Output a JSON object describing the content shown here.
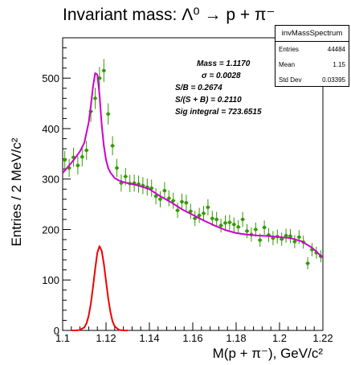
{
  "title": "Invariant mass: Λ⁰ → p + π⁻",
  "stats_box": {
    "name": "invMassSpectrum",
    "rows": [
      {
        "label": "Entries",
        "value": "44484"
      },
      {
        "label": "Mean",
        "value": "1.15"
      },
      {
        "label": "Std Dev",
        "value": "0.03395"
      }
    ]
  },
  "fit_results": [
    "Mass = 1.1170",
    "σ   = 0.0028",
    "S/B = 0.2674",
    "S/(S + B) = 0.2110",
    "Sig integral = 723.6515"
  ],
  "colors": {
    "data_points": "#339900",
    "total_fit": "#cc00cc",
    "signal_fit": "#ee0000",
    "axes": "#000000"
  },
  "chart_data": {
    "type": "scatter",
    "title": "Invariant mass: Λ⁰ → p + π⁻",
    "xlabel": "M(p + π⁻), GeV/c²",
    "ylabel": "Entries / 2 MeV/c²",
    "xlim": [
      1.1,
      1.22
    ],
    "ylim": [
      0,
      580
    ],
    "x_ticks": [
      1.1,
      1.12,
      1.14,
      1.16,
      1.18,
      1.2,
      1.22
    ],
    "x_tick_labels": [
      "1.1",
      "1.12",
      "1.14",
      "1.16",
      "1.18",
      "1.2",
      "1.22"
    ],
    "y_ticks": [
      0,
      100,
      200,
      300,
      400,
      500
    ],
    "y_tick_labels": [
      "0",
      "100",
      "200",
      "300",
      "400",
      "500"
    ],
    "grid": false,
    "series": [
      {
        "name": "",
        "kind": "points_with_errors",
        "x": [
          1.101,
          1.103,
          1.105,
          1.107,
          1.109,
          1.111,
          1.113,
          1.115,
          1.117,
          1.119,
          1.121,
          1.123,
          1.125,
          1.127,
          1.129,
          1.131,
          1.133,
          1.135,
          1.137,
          1.139,
          1.141,
          1.143,
          1.145,
          1.147,
          1.149,
          1.151,
          1.153,
          1.155,
          1.157,
          1.159,
          1.161,
          1.163,
          1.165,
          1.167,
          1.169,
          1.171,
          1.173,
          1.175,
          1.177,
          1.179,
          1.181,
          1.183,
          1.185,
          1.187,
          1.189,
          1.191,
          1.193,
          1.195,
          1.197,
          1.199,
          1.201,
          1.203,
          1.205,
          1.207,
          1.209,
          1.211,
          1.213,
          1.215,
          1.217,
          1.219
        ],
        "y": [
          338,
          322,
          343,
          327,
          344,
          357,
          434,
          460,
          500,
          515,
          429,
          366,
          322,
          292,
          305,
          291,
          292,
          290,
          287,
          284,
          282,
          266,
          260,
          277,
          262,
          257,
          238,
          255,
          253,
          236,
          222,
          228,
          232,
          244,
          222,
          220,
          208,
          213,
          214,
          210,
          205,
          220,
          197,
          190,
          200,
          179,
          204,
          189,
          183,
          186,
          181,
          188,
          187,
          176,
          185,
          175,
          133,
          160,
          154,
          147
        ],
        "yerr": [
          18,
          18,
          19,
          18,
          19,
          19,
          21,
          21,
          22,
          23,
          21,
          19,
          18,
          17,
          17,
          17,
          17,
          17,
          17,
          17,
          17,
          16,
          16,
          17,
          16,
          16,
          15,
          16,
          16,
          15,
          15,
          15,
          15,
          16,
          15,
          15,
          14,
          15,
          15,
          14,
          14,
          15,
          14,
          14,
          14,
          13,
          14,
          14,
          14,
          14,
          13,
          14,
          14,
          13,
          14,
          13,
          12,
          13,
          12,
          12
        ]
      },
      {
        "name": "",
        "kind": "curve",
        "x": [
          1.1,
          1.102,
          1.104,
          1.106,
          1.108,
          1.11,
          1.112,
          1.113,
          1.114,
          1.115,
          1.116,
          1.117,
          1.118,
          1.119,
          1.12,
          1.121,
          1.122,
          1.124,
          1.126,
          1.128,
          1.13,
          1.135,
          1.14,
          1.145,
          1.15,
          1.155,
          1.16,
          1.165,
          1.17,
          1.175,
          1.18,
          1.185,
          1.19,
          1.195,
          1.2,
          1.205,
          1.21,
          1.215,
          1.22
        ],
        "y": [
          312,
          322,
          332,
          343,
          355,
          372,
          412,
          445,
          483,
          510,
          507,
          467,
          408,
          366,
          338,
          322,
          313,
          302,
          297,
          294,
          292,
          287,
          280,
          266,
          254,
          240,
          229,
          218,
          208,
          199,
          193,
          190,
          188,
          187,
          185,
          183,
          177,
          164,
          144
        ]
      },
      {
        "name": "",
        "kind": "curve",
        "x": [
          1.104,
          1.106,
          1.108,
          1.11,
          1.111,
          1.112,
          1.113,
          1.114,
          1.115,
          1.116,
          1.117,
          1.118,
          1.119,
          1.12,
          1.121,
          1.122,
          1.123,
          1.124,
          1.126,
          1.128,
          1.13
        ],
        "y": [
          0,
          0,
          1,
          6,
          14,
          29,
          53,
          86,
          122,
          154,
          167,
          158,
          132,
          98,
          64,
          37,
          18,
          8,
          1,
          0,
          0
        ]
      }
    ]
  }
}
